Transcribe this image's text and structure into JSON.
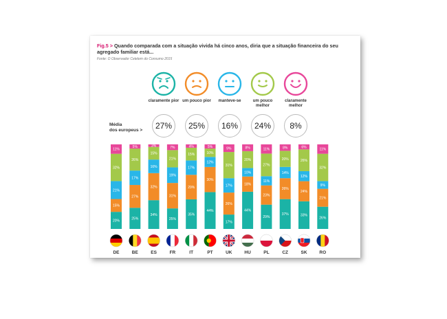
{
  "figure": {
    "fig_prefix": "Fig.5 >",
    "title": "Quando comparada com a situação vivida há cinco anos, diria que a situação financeira do seu agregado familiar está...",
    "source": "Fonte: O Observador Cetelem do Consumo 2015"
  },
  "categories": [
    {
      "label": "claramente pior",
      "face": "very-sad-face-icon",
      "color": "#1bb3a6"
    },
    {
      "label": "um pouco pior",
      "face": "sad-face-icon",
      "color": "#f28c28"
    },
    {
      "label": "manteve-se",
      "face": "neutral-face-icon",
      "color": "#29b6e8"
    },
    {
      "label": "um pouco melhor",
      "face": "smile-face-icon",
      "color": "#a3c94a"
    },
    {
      "label": "claramente melhor",
      "face": "happy-face-icon",
      "color": "#e8479a"
    }
  ],
  "average": {
    "label": "Média dos europeus >",
    "values": [
      "27%",
      "25%",
      "16%",
      "24%",
      "8%"
    ]
  },
  "chart_data": {
    "type": "bar",
    "stacked": true,
    "ylim": [
      0,
      100
    ],
    "categories": [
      "DE",
      "BE",
      "ES",
      "FR",
      "IT",
      "PT",
      "UK",
      "HU",
      "PL",
      "CZ",
      "SK",
      "RO"
    ],
    "series": [
      {
        "name": "claramente pior",
        "color": "#1bb3a6",
        "values": [
          20,
          25,
          34,
          25,
          35,
          44,
          17,
          44,
          29,
          37,
          33,
          26
        ]
      },
      {
        "name": "um pouco pior",
        "color": "#f28c28",
        "values": [
          15,
          27,
          32,
          31,
          29,
          30,
          26,
          18,
          23,
          26,
          24,
          21
        ]
      },
      {
        "name": "manteve-se",
        "color": "#29b6e8",
        "values": [
          21,
          17,
          16,
          19,
          17,
          12,
          17,
          10,
          11,
          14,
          12,
          9
        ]
      },
      {
        "name": "um pouco melhor",
        "color": "#a3c94a",
        "values": [
          32,
          26,
          15,
          21,
          15,
          10,
          31,
          20,
          27,
          20,
          26,
          32
        ]
      },
      {
        "name": "claramente melhor",
        "color": "#e8479a",
        "values": [
          11,
          5,
          3,
          7,
          4,
          5,
          9,
          8,
          11,
          8,
          6,
          11
        ]
      }
    ]
  },
  "flags": [
    {
      "code": "DE",
      "icon": "flag-germany-icon",
      "type": "h",
      "colors": [
        "#000000",
        "#dd0000",
        "#ffce00"
      ]
    },
    {
      "code": "BE",
      "icon": "flag-belgium-icon",
      "type": "v",
      "colors": [
        "#000000",
        "#fdda24",
        "#ef3340"
      ]
    },
    {
      "code": "ES",
      "icon": "flag-spain-icon",
      "type": "es",
      "colors": [
        "#c60b1e",
        "#ffc400",
        "#c60b1e"
      ]
    },
    {
      "code": "FR",
      "icon": "flag-france-icon",
      "type": "v",
      "colors": [
        "#002395",
        "#ffffff",
        "#ed2939"
      ]
    },
    {
      "code": "IT",
      "icon": "flag-italy-icon",
      "type": "v",
      "colors": [
        "#009246",
        "#ffffff",
        "#ce2b37"
      ]
    },
    {
      "code": "PT",
      "icon": "flag-portugal-icon",
      "type": "pt",
      "colors": [
        "#006600",
        "#ff0000",
        "#ffcc00"
      ]
    },
    {
      "code": "UK",
      "icon": "flag-uk-icon",
      "type": "uk",
      "colors": [
        "#012169",
        "#ffffff",
        "#c8102e"
      ]
    },
    {
      "code": "HU",
      "icon": "flag-hungary-icon",
      "type": "h",
      "colors": [
        "#cd2a3e",
        "#ffffff",
        "#436f4d"
      ]
    },
    {
      "code": "PL",
      "icon": "flag-poland-icon",
      "type": "h2",
      "colors": [
        "#ffffff",
        "#dc143c"
      ]
    },
    {
      "code": "CZ",
      "icon": "flag-czech-icon",
      "type": "cz",
      "colors": [
        "#ffffff",
        "#d7141a",
        "#11457e"
      ]
    },
    {
      "code": "SK",
      "icon": "flag-slovakia-icon",
      "type": "h",
      "colors": [
        "#ffffff",
        "#0b4ea2",
        "#ee1c25"
      ]
    },
    {
      "code": "RO",
      "icon": "flag-romania-icon",
      "type": "v",
      "colors": [
        "#002b7f",
        "#fcd116",
        "#ce1126"
      ]
    }
  ]
}
